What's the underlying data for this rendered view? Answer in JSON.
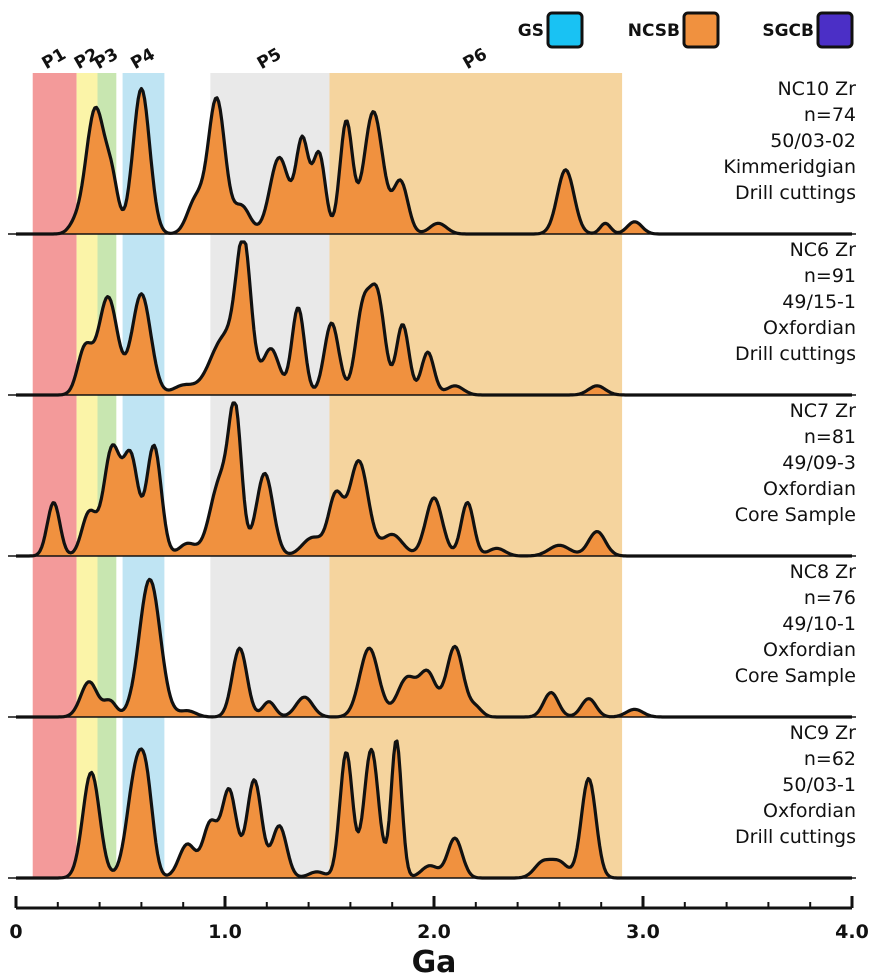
{
  "chart_data": {
    "type": "area",
    "title": "",
    "xlabel": "Ga",
    "xlim": [
      0,
      4.0
    ],
    "x_ticks": [
      "0",
      "1.0",
      "2.0",
      "3.0",
      "4.0"
    ],
    "x_tick_values": [
      0,
      1.0,
      2.0,
      3.0,
      4.0
    ],
    "legend": [
      {
        "name": "GS",
        "color": "#19c2f3"
      },
      {
        "name": "NCSB",
        "color": "#f0913f"
      },
      {
        "name": "SGCB",
        "color": "#4b2fc6"
      }
    ],
    "legend_placement": "top-right",
    "periods": [
      {
        "name": "P1",
        "start": 0.08,
        "end": 0.29,
        "color": "#f39a9a"
      },
      {
        "name": "P2",
        "start": 0.29,
        "end": 0.39,
        "color": "#fbf4a8"
      },
      {
        "name": "P3",
        "start": 0.39,
        "end": 0.48,
        "color": "#c8e6b0"
      },
      {
        "name": "P4",
        "start": 0.51,
        "end": 0.71,
        "color": "#bfe4f3"
      },
      {
        "name": "P5",
        "start": 0.93,
        "end": 1.5,
        "color": "#e9e9e9"
      },
      {
        "name": "P6",
        "start": 1.5,
        "end": 2.9,
        "color": "#f5d49e"
      }
    ],
    "series": [
      {
        "name": "NC10 Zr",
        "label_lines": [
          "NC10 Zr",
          "n=74",
          "50/03-02",
          "Kimmeridgian",
          "Drill cuttings"
        ],
        "fill": "#f0913f",
        "peaks": [
          [
            0.28,
            0.05,
            0.03
          ],
          [
            0.38,
            0.82,
            0.045
          ],
          [
            0.46,
            0.28,
            0.03
          ],
          [
            0.6,
            0.95,
            0.04
          ],
          [
            0.86,
            0.22,
            0.04
          ],
          [
            0.96,
            0.88,
            0.04
          ],
          [
            1.08,
            0.18,
            0.04
          ],
          [
            1.26,
            0.5,
            0.045
          ],
          [
            1.37,
            0.6,
            0.03
          ],
          [
            1.45,
            0.52,
            0.03
          ],
          [
            1.58,
            0.73,
            0.03
          ],
          [
            1.71,
            0.8,
            0.045
          ],
          [
            1.84,
            0.34,
            0.035
          ],
          [
            2.02,
            0.07,
            0.04
          ],
          [
            2.63,
            0.42,
            0.04
          ],
          [
            2.82,
            0.07,
            0.025
          ],
          [
            2.96,
            0.08,
            0.035
          ]
        ]
      },
      {
        "name": "NC6 Zr",
        "label_lines": [
          "NC6 Zr",
          "n=91",
          "49/15-1",
          "Oxfordian",
          "Drill cuttings"
        ],
        "fill": "#f0913f",
        "peaks": [
          [
            0.33,
            0.3,
            0.035
          ],
          [
            0.44,
            0.64,
            0.045
          ],
          [
            0.6,
            0.66,
            0.045
          ],
          [
            0.8,
            0.06,
            0.05
          ],
          [
            1.0,
            0.38,
            0.07
          ],
          [
            1.09,
            0.88,
            0.035
          ],
          [
            1.22,
            0.3,
            0.04
          ],
          [
            1.35,
            0.57,
            0.03
          ],
          [
            1.51,
            0.47,
            0.035
          ],
          [
            1.66,
            0.55,
            0.035
          ],
          [
            1.73,
            0.62,
            0.035
          ],
          [
            1.85,
            0.46,
            0.03
          ],
          [
            1.97,
            0.28,
            0.03
          ],
          [
            2.1,
            0.06,
            0.04
          ],
          [
            2.78,
            0.06,
            0.04
          ]
        ]
      },
      {
        "name": "NC7 Zr",
        "label_lines": [
          "NC7 Zr",
          "n=81",
          "49/09-3",
          "Oxfordian",
          "Core Sample"
        ],
        "fill": "#f0913f",
        "peaks": [
          [
            0.18,
            0.35,
            0.03
          ],
          [
            0.35,
            0.28,
            0.035
          ],
          [
            0.46,
            0.7,
            0.04
          ],
          [
            0.55,
            0.62,
            0.035
          ],
          [
            0.66,
            0.72,
            0.035
          ],
          [
            0.82,
            0.08,
            0.04
          ],
          [
            0.98,
            0.5,
            0.05
          ],
          [
            1.05,
            0.82,
            0.03
          ],
          [
            1.19,
            0.54,
            0.04
          ],
          [
            1.42,
            0.12,
            0.05
          ],
          [
            1.53,
            0.38,
            0.035
          ],
          [
            1.64,
            0.62,
            0.045
          ],
          [
            1.8,
            0.14,
            0.05
          ],
          [
            2.0,
            0.38,
            0.04
          ],
          [
            2.16,
            0.35,
            0.03
          ],
          [
            2.3,
            0.05,
            0.04
          ],
          [
            2.6,
            0.07,
            0.05
          ],
          [
            2.78,
            0.16,
            0.04
          ]
        ]
      },
      {
        "name": "NC8 Zr",
        "label_lines": [
          "NC8 Zr",
          "n=76",
          "49/10-1",
          "Oxfordian",
          "Core Sample"
        ],
        "fill": "#f0913f",
        "peaks": [
          [
            0.35,
            0.23,
            0.04
          ],
          [
            0.45,
            0.1,
            0.03
          ],
          [
            0.64,
            0.9,
            0.05
          ],
          [
            0.82,
            0.04,
            0.04
          ],
          [
            1.07,
            0.45,
            0.035
          ],
          [
            1.21,
            0.1,
            0.03
          ],
          [
            1.38,
            0.13,
            0.04
          ],
          [
            1.69,
            0.45,
            0.045
          ],
          [
            1.87,
            0.25,
            0.045
          ],
          [
            1.97,
            0.28,
            0.04
          ],
          [
            2.1,
            0.46,
            0.04
          ],
          [
            2.2,
            0.06,
            0.03
          ],
          [
            2.56,
            0.16,
            0.035
          ],
          [
            2.74,
            0.12,
            0.035
          ],
          [
            2.96,
            0.05,
            0.04
          ]
        ]
      },
      {
        "name": "NC9 Zr",
        "label_lines": [
          "NC9 Zr",
          "n=62",
          "50/03-1",
          "Oxfordian",
          "Drill cuttings"
        ],
        "fill": "#f0913f",
        "peaks": [
          [
            0.36,
            0.69,
            0.04
          ],
          [
            0.58,
            0.73,
            0.045
          ],
          [
            0.63,
            0.3,
            0.03
          ],
          [
            0.82,
            0.22,
            0.04
          ],
          [
            0.93,
            0.35,
            0.035
          ],
          [
            1.02,
            0.57,
            0.035
          ],
          [
            1.14,
            0.64,
            0.035
          ],
          [
            1.26,
            0.34,
            0.035
          ],
          [
            1.44,
            0.04,
            0.04
          ],
          [
            1.58,
            0.82,
            0.03
          ],
          [
            1.7,
            0.84,
            0.035
          ],
          [
            1.82,
            0.9,
            0.025
          ],
          [
            1.98,
            0.08,
            0.04
          ],
          [
            2.1,
            0.26,
            0.035
          ],
          [
            2.52,
            0.1,
            0.04
          ],
          [
            2.6,
            0.1,
            0.04
          ],
          [
            2.74,
            0.65,
            0.035
          ]
        ]
      }
    ]
  }
}
